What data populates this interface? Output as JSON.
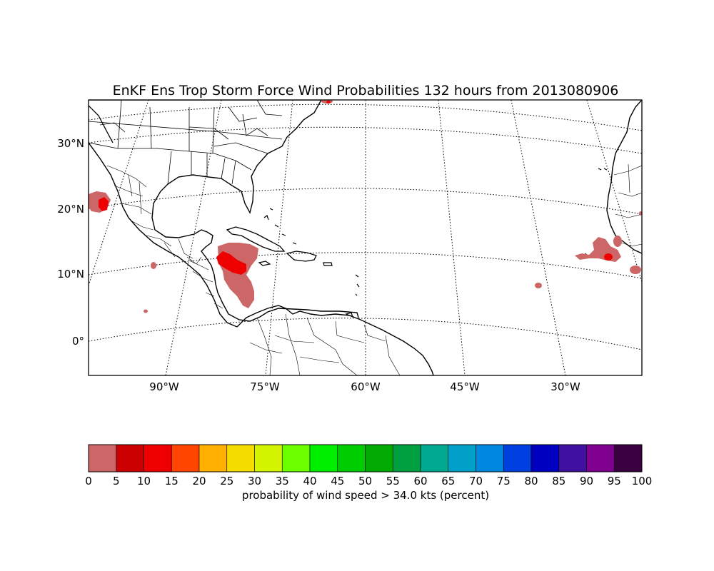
{
  "title": "EnKF Ens Trop Storm Force Wind Probabilities 132 hours from 2013080906",
  "map": {
    "lat_labels": [
      "30°N",
      "20°N",
      "10°N",
      "0°"
    ],
    "lon_labels": [
      "90°W",
      "75°W",
      "60°W",
      "45°W",
      "30°W"
    ]
  },
  "colorbar": {
    "label": "probability of wind speed > 34.0 kts (percent)",
    "ticks": [
      "0",
      "5",
      "10",
      "15",
      "20",
      "25",
      "30",
      "35",
      "40",
      "45",
      "50",
      "55",
      "60",
      "65",
      "70",
      "75",
      "80",
      "85",
      "90",
      "95",
      "100"
    ],
    "colors": [
      "#cd6666",
      "#cc0000",
      "#ee0000",
      "#ff4500",
      "#ffb000",
      "#f5dc00",
      "#d4f500",
      "#6bff00",
      "#00ee00",
      "#00cd00",
      "#00aa00",
      "#00a040",
      "#00aa90",
      "#00a0c8",
      "#0088e0",
      "#0040e0",
      "#0000c0",
      "#4010a0",
      "#800090",
      "#3a0040"
    ]
  },
  "probability_regions": [
    {
      "area": "Western Caribbean",
      "level": "0-5"
    },
    {
      "area": "Western Caribbean core",
      "level": "10-15"
    },
    {
      "area": "Southwest Mexico coast",
      "level": "10-15"
    },
    {
      "area": "Eastern Atlantic near Cape Verde",
      "level": "10-15"
    }
  ]
}
